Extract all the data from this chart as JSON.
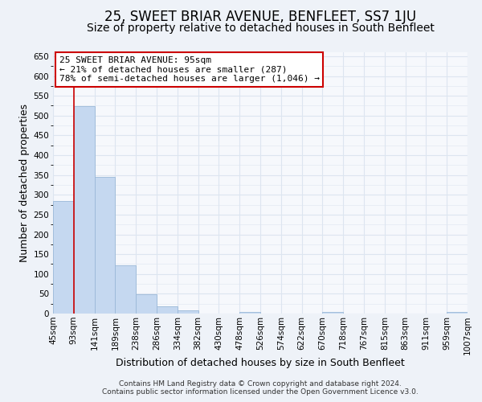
{
  "title": "25, SWEET BRIAR AVENUE, BENFLEET, SS7 1JU",
  "subtitle": "Size of property relative to detached houses in South Benfleet",
  "xlabel": "Distribution of detached houses by size in South Benfleet",
  "ylabel": "Number of detached properties",
  "bar_values": [
    284,
    524,
    346,
    122,
    48,
    19,
    8,
    0,
    0,
    5,
    0,
    0,
    0,
    4,
    0,
    0,
    0,
    0,
    0,
    5
  ],
  "bin_labels": [
    "45sqm",
    "93sqm",
    "141sqm",
    "189sqm",
    "238sqm",
    "286sqm",
    "334sqm",
    "382sqm",
    "430sqm",
    "478sqm",
    "526sqm",
    "574sqm",
    "622sqm",
    "670sqm",
    "718sqm",
    "767sqm",
    "815sqm",
    "863sqm",
    "911sqm",
    "959sqm",
    "1007sqm"
  ],
  "bar_color": "#c5d8f0",
  "bar_edge_color": "#9ab8d8",
  "vline_x": 1,
  "vline_color": "#cc0000",
  "annotation_title": "25 SWEET BRIAR AVENUE: 95sqm",
  "annotation_line1": "← 21% of detached houses are smaller (287)",
  "annotation_line2": "78% of semi-detached houses are larger (1,046) →",
  "annotation_box_facecolor": "#ffffff",
  "annotation_box_edgecolor": "#cc0000",
  "ylim": [
    0,
    660
  ],
  "yticks": [
    0,
    50,
    100,
    150,
    200,
    250,
    300,
    350,
    400,
    450,
    500,
    550,
    600,
    650
  ],
  "footer_line1": "Contains HM Land Registry data © Crown copyright and database right 2024.",
  "footer_line2": "Contains public sector information licensed under the Open Government Licence v3.0.",
  "bg_color": "#eef2f8",
  "plot_bg_color": "#f6f8fc",
  "grid_color": "#dde5f0",
  "title_fontsize": 12,
  "subtitle_fontsize": 10,
  "axis_label_fontsize": 9,
  "tick_fontsize": 7.5,
  "annotation_fontsize": 8,
  "footer_fontsize": 6.5
}
